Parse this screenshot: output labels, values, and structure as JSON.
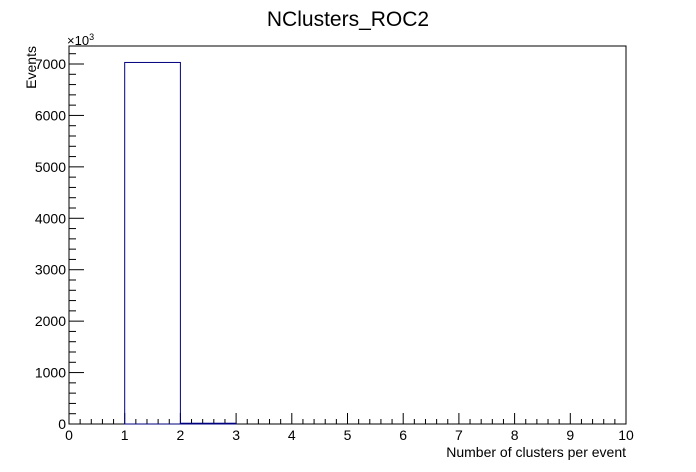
{
  "chart_data": {
    "type": "bar",
    "title": "NClusters_ROC2",
    "xlabel": "Number of clusters per event",
    "ylabel": "Events",
    "y_multiplier_label": "×10",
    "y_multiplier_exponent": "3",
    "xlim": [
      0,
      10
    ],
    "ylim": [
      0,
      7350
    ],
    "x_ticks": [
      "0",
      "1",
      "2",
      "3",
      "4",
      "5",
      "6",
      "7",
      "8",
      "9",
      "10"
    ],
    "y_ticks": [
      "0",
      "1000",
      "2000",
      "3000",
      "4000",
      "5000",
      "6000",
      "7000"
    ],
    "bin_edges": [
      0,
      1,
      2,
      3,
      4,
      5,
      6,
      7,
      8,
      9,
      10
    ],
    "values": [
      0,
      7030,
      15,
      0,
      0,
      0,
      0,
      0,
      0,
      0
    ],
    "histogram_style": "step outline",
    "line_color": "#00007f",
    "grid": false,
    "legend": false
  }
}
